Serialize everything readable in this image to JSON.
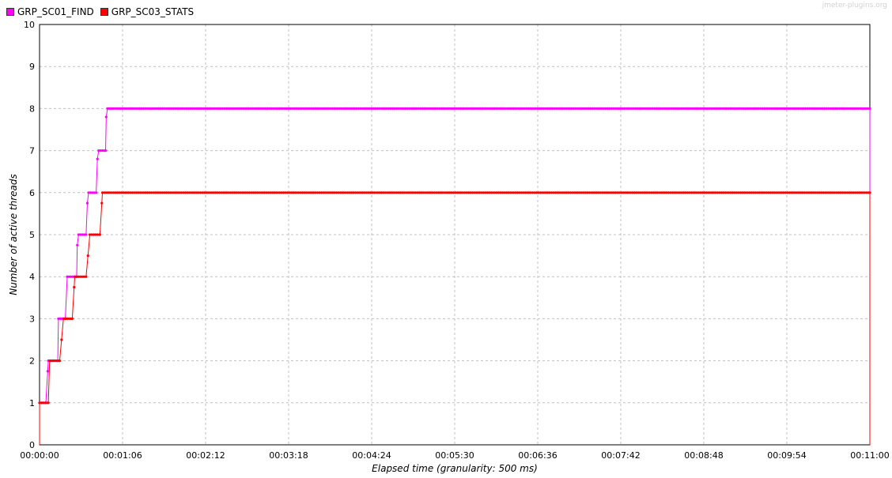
{
  "legend": {
    "items": [
      {
        "label": "GRP_SC01_FIND",
        "color": "#ff00ff"
      },
      {
        "label": "GRP_SC03_STATS",
        "color": "#ff0000"
      }
    ]
  },
  "watermark": "jmeter-plugins.org",
  "chart_data": {
    "type": "line",
    "xlabel": "Elapsed time (granularity: 500 ms)",
    "ylabel": "Number of active threads",
    "x_ticks": [
      "00:00:00",
      "00:01:06",
      "00:02:12",
      "00:03:18",
      "00:04:24",
      "00:05:30",
      "00:06:36",
      "00:07:42",
      "00:08:48",
      "00:09:54",
      "00:11:00"
    ],
    "y_ticks": [
      "0",
      "1",
      "2",
      "3",
      "4",
      "5",
      "6",
      "7",
      "8",
      "9",
      "10"
    ],
    "xlim_seconds": [
      0,
      660
    ],
    "ylim": [
      0,
      10
    ],
    "grid": true,
    "legend_position": "top-left",
    "series": [
      {
        "name": "GRP_SC01_FIND",
        "color": "#ff00ff",
        "points": [
          [
            0,
            1
          ],
          [
            1.5,
            1
          ],
          [
            5,
            1
          ],
          [
            7,
            2
          ],
          [
            9,
            2
          ],
          [
            12,
            2
          ],
          [
            14.5,
            2
          ],
          [
            15,
            3
          ],
          [
            18,
            3
          ],
          [
            20.5,
            3
          ],
          [
            22,
            4
          ],
          [
            25,
            4
          ],
          [
            28,
            4
          ],
          [
            29.5,
            4
          ],
          [
            30,
            4.75
          ],
          [
            31,
            5
          ],
          [
            34,
            5
          ],
          [
            37,
            5
          ],
          [
            38,
            5.75
          ],
          [
            39,
            6
          ],
          [
            42,
            6
          ],
          [
            45,
            6
          ],
          [
            46,
            6.8
          ],
          [
            47,
            7
          ],
          [
            50,
            7
          ],
          [
            52.5,
            7
          ],
          [
            53,
            7.8
          ],
          [
            54,
            8
          ],
          [
            660,
            8
          ],
          [
            660,
            0
          ]
        ]
      },
      {
        "name": "GRP_SC03_STATS",
        "color": "#ff0000",
        "points": [
          [
            0,
            0
          ],
          [
            0,
            1
          ],
          [
            7,
            1
          ],
          [
            8,
            2
          ],
          [
            16,
            2
          ],
          [
            19,
            3
          ],
          [
            26,
            3
          ],
          [
            28,
            4
          ],
          [
            37,
            4
          ],
          [
            40,
            5
          ],
          [
            48,
            5
          ],
          [
            50,
            6
          ],
          [
            660,
            6
          ],
          [
            660,
            0
          ]
        ]
      }
    ]
  }
}
